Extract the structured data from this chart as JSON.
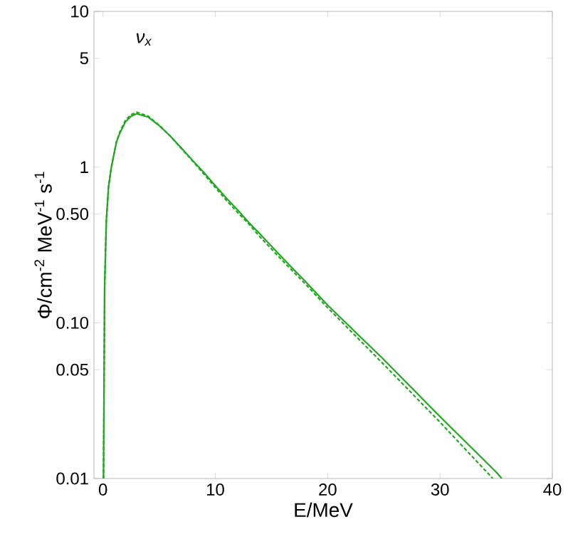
{
  "chart_data": {
    "type": "line",
    "xlabel": "E/MeV",
    "ylabel": "Φ/cm$^{-2}$ MeV$^{-1}$ s$^{-1}$",
    "annotations": [
      "ν$_{x}$"
    ],
    "log": "y",
    "grid": false,
    "marker": "none",
    "xlim": [
      -0.8,
      40
    ],
    "xticks": [
      0,
      10,
      20,
      30,
      40
    ],
    "ylim": [
      0.01,
      10
    ],
    "yticks": [
      {
        "value": 0.01,
        "label": "0.01"
      },
      {
        "value": 0.05,
        "label": "0.05"
      },
      {
        "value": 0.1,
        "label": "0.10"
      },
      {
        "value": 0.5,
        "label": "0.50"
      },
      {
        "value": 1,
        "label": "1"
      },
      {
        "value": 5,
        "label": "5"
      },
      {
        "value": 10,
        "label": "10"
      }
    ],
    "series": [
      {
        "color": "#1fa91f",
        "line_style": "solid",
        "x": [
          0.05,
          0.15,
          0.3,
          0.5,
          0.75,
          1.2,
          1.5,
          2,
          2.5,
          3,
          4,
          5,
          6,
          7,
          8,
          9,
          10,
          11,
          12,
          13,
          14,
          16,
          18,
          20,
          25,
          30,
          35,
          35.5
        ],
        "values": [
          0.01,
          0.17,
          0.45,
          0.75,
          1.0,
          1.45,
          1.65,
          1.95,
          2.12,
          2.2,
          2.1,
          1.85,
          1.58,
          1.32,
          1.1,
          0.92,
          0.76,
          0.63,
          0.53,
          0.44,
          0.37,
          0.26,
          0.185,
          0.13,
          0.058,
          0.025,
          0.011,
          0.01
        ]
      },
      {
        "color": "#1fa91f",
        "line_style": "dashed",
        "x": [
          0.05,
          0.15,
          0.3,
          0.5,
          0.75,
          1.2,
          1.5,
          2,
          2.5,
          3,
          4,
          5,
          6,
          7,
          8,
          9,
          10,
          11,
          12,
          13,
          14,
          16,
          18,
          20,
          25,
          30,
          34.7
        ],
        "values": [
          0.01,
          0.17,
          0.45,
          0.75,
          1.0,
          1.45,
          1.68,
          2.0,
          2.17,
          2.25,
          2.13,
          1.86,
          1.58,
          1.31,
          1.09,
          0.9,
          0.74,
          0.61,
          0.51,
          0.43,
          0.355,
          0.25,
          0.178,
          0.125,
          0.054,
          0.023,
          0.01
        ]
      }
    ]
  }
}
